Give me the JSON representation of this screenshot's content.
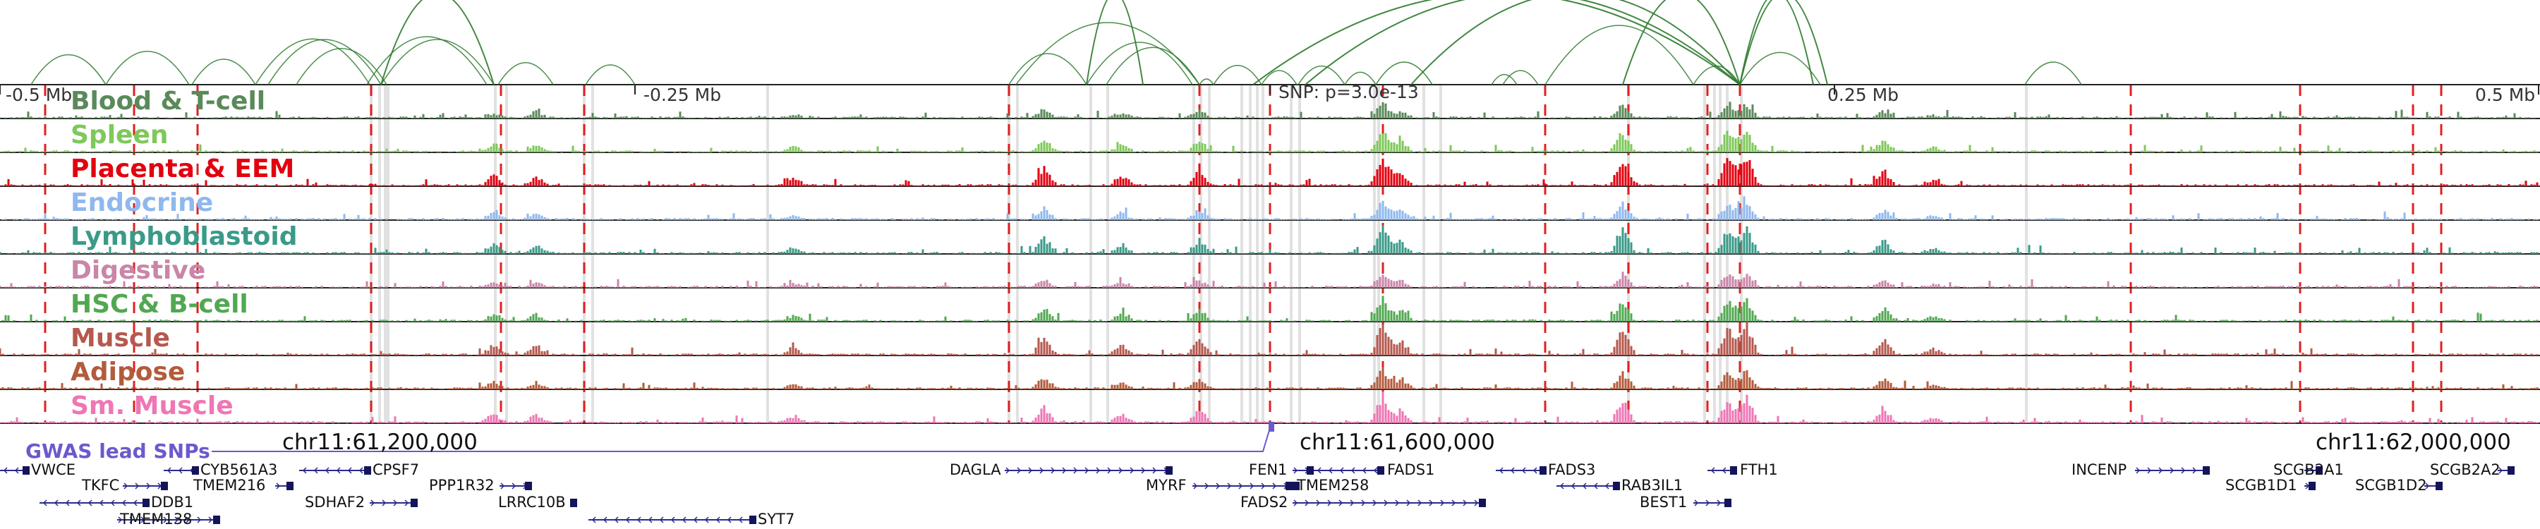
{
  "scale": {
    "left_label": "-0.5 Mb",
    "mid_left_label": "-0.25 Mb",
    "snp_label": "SNP: p=3.0e-13",
    "mid_right_label": "0.25 Mb",
    "right_label": "0.5 Mb"
  },
  "tracks": [
    {
      "name": "Blood & T-cell",
      "color": "#5a8a5a"
    },
    {
      "name": "Spleen",
      "color": "#7fc85a"
    },
    {
      "name": "Placenta & EEM",
      "color": "#e3000f"
    },
    {
      "name": "Endocrine",
      "color": "#8fb8ee"
    },
    {
      "name": "Lymphoblastoid",
      "color": "#3a9a88"
    },
    {
      "name": "Digestive",
      "color": "#c986a8"
    },
    {
      "name": "HSC & B-cell",
      "color": "#52a852"
    },
    {
      "name": "Muscle",
      "color": "#b5584e"
    },
    {
      "name": "Adipose",
      "color": "#b35b3b"
    },
    {
      "name": "Sm. Muscle",
      "color": "#ef76b4"
    }
  ],
  "gwas_label": "GWAS lead SNPs",
  "coordinates": [
    "chr11:61,200,000",
    "chr11:61,600,000",
    "chr11:62,000,000"
  ],
  "genes": [
    {
      "name": "VWCE",
      "row": 0,
      "dir": "-"
    },
    {
      "name": "CYB561A3",
      "row": 0,
      "dir": "-"
    },
    {
      "name": "CPSF7",
      "row": 0,
      "dir": "-"
    },
    {
      "name": "DAGLA",
      "row": 0,
      "dir": "+"
    },
    {
      "name": "FEN1",
      "row": 0,
      "dir": "+"
    },
    {
      "name": "FADS1",
      "row": 0,
      "dir": "-"
    },
    {
      "name": "FADS3",
      "row": 0,
      "dir": "-"
    },
    {
      "name": "FTH1",
      "row": 0,
      "dir": "-"
    },
    {
      "name": "INCENP",
      "row": 0,
      "dir": "+"
    },
    {
      "name": "SCGB2A1",
      "row": 0,
      "dir": "+"
    },
    {
      "name": "SCGB2A2",
      "row": 0,
      "dir": "+"
    },
    {
      "name": "TKFC",
      "row": 1,
      "dir": "+"
    },
    {
      "name": "TMEM216",
      "row": 1,
      "dir": "+"
    },
    {
      "name": "PPP1R32",
      "row": 1,
      "dir": "+"
    },
    {
      "name": "MYRF",
      "row": 1,
      "dir": "+"
    },
    {
      "name": "TMEM258",
      "row": 1,
      "dir": "-"
    },
    {
      "name": "RAB3IL1",
      "row": 1,
      "dir": "-"
    },
    {
      "name": "SCGB1D1",
      "row": 1,
      "dir": "+"
    },
    {
      "name": "SCGB1D2",
      "row": 1,
      "dir": "+"
    },
    {
      "name": "DDB1",
      "row": 2,
      "dir": "-"
    },
    {
      "name": "SDHAF2",
      "row": 2,
      "dir": "+"
    },
    {
      "name": "LRRC10B",
      "row": 2,
      "dir": "-"
    },
    {
      "name": "FADS2",
      "row": 2,
      "dir": "+"
    },
    {
      "name": "BEST1",
      "row": 2,
      "dir": "+"
    },
    {
      "name": "TMEM138",
      "row": 3,
      "dir": "+"
    },
    {
      "name": "SYT7",
      "row": 3,
      "dir": "-"
    }
  ]
}
